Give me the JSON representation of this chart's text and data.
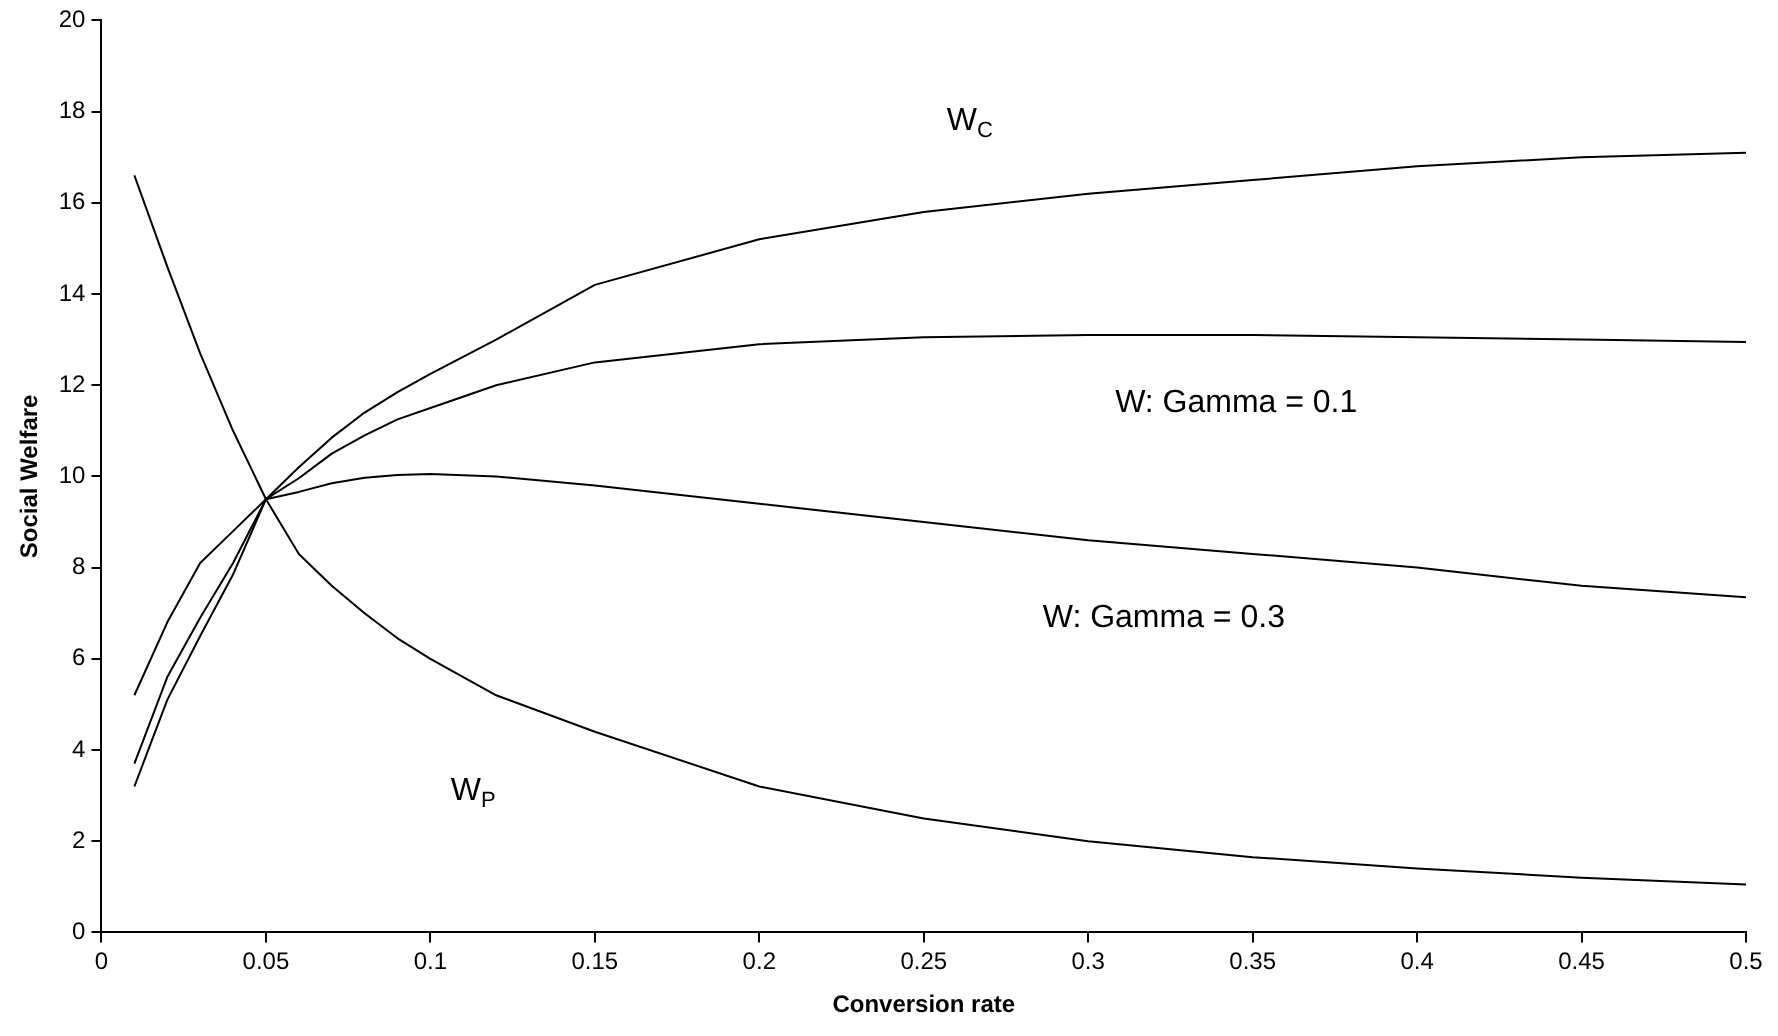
{
  "chart_data": {
    "type": "line",
    "xlabel": "Conversion rate",
    "ylabel": "Social Welfare",
    "x": [
      0.01,
      0.02,
      0.03,
      0.04,
      0.05,
      0.06,
      0.07,
      0.08,
      0.09,
      0.1,
      0.12,
      0.15,
      0.2,
      0.25,
      0.3,
      0.35,
      0.4,
      0.45,
      0.5
    ],
    "series": [
      {
        "name": "W$_{C}$",
        "color": "#000000",
        "values": [
          3.2,
          5.1,
          6.5,
          7.85,
          9.5,
          10.2,
          10.85,
          11.4,
          11.85,
          12.25,
          13.0,
          14.2,
          15.2,
          15.8,
          16.2,
          16.5,
          16.8,
          17.0,
          17.1
        ]
      },
      {
        "name": "W: Gamma = 0.1",
        "color": "#000000",
        "values": [
          3.7,
          5.6,
          6.9,
          8.1,
          9.5,
          9.96,
          10.5,
          10.9,
          11.25,
          11.5,
          12.0,
          12.5,
          12.9,
          13.05,
          13.1,
          13.1,
          13.05,
          13.0,
          12.95
        ]
      },
      {
        "name": "W: Gamma = 0.3",
        "color": "#000000",
        "values": [
          5.2,
          6.8,
          8.1,
          8.8,
          9.5,
          9.66,
          9.85,
          9.97,
          10.03,
          10.05,
          10.0,
          9.8,
          9.4,
          9.0,
          8.6,
          8.3,
          8.0,
          7.6,
          7.35
        ]
      },
      {
        "name": "W$_{P}$",
        "color": "#000000",
        "values": [
          16.6,
          14.6,
          12.7,
          11.0,
          9.5,
          8.3,
          7.6,
          7.0,
          6.45,
          6.0,
          5.2,
          4.4,
          3.2,
          2.5,
          2.0,
          1.65,
          1.4,
          1.2,
          1.05
        ]
      }
    ],
    "xlim": [
      0,
      0.5
    ],
    "xticks": [
      0,
      0.05,
      0.1,
      0.15,
      0.2,
      0.25,
      0.3,
      0.35,
      0.4,
      0.45,
      0.5
    ],
    "ylim": [
      0,
      20
    ],
    "yticks": [
      0,
      2,
      4,
      6,
      8,
      10,
      12,
      14,
      16,
      18,
      20
    ],
    "grid": false,
    "legend": false,
    "marker": "none",
    "line_style": "solid"
  }
}
